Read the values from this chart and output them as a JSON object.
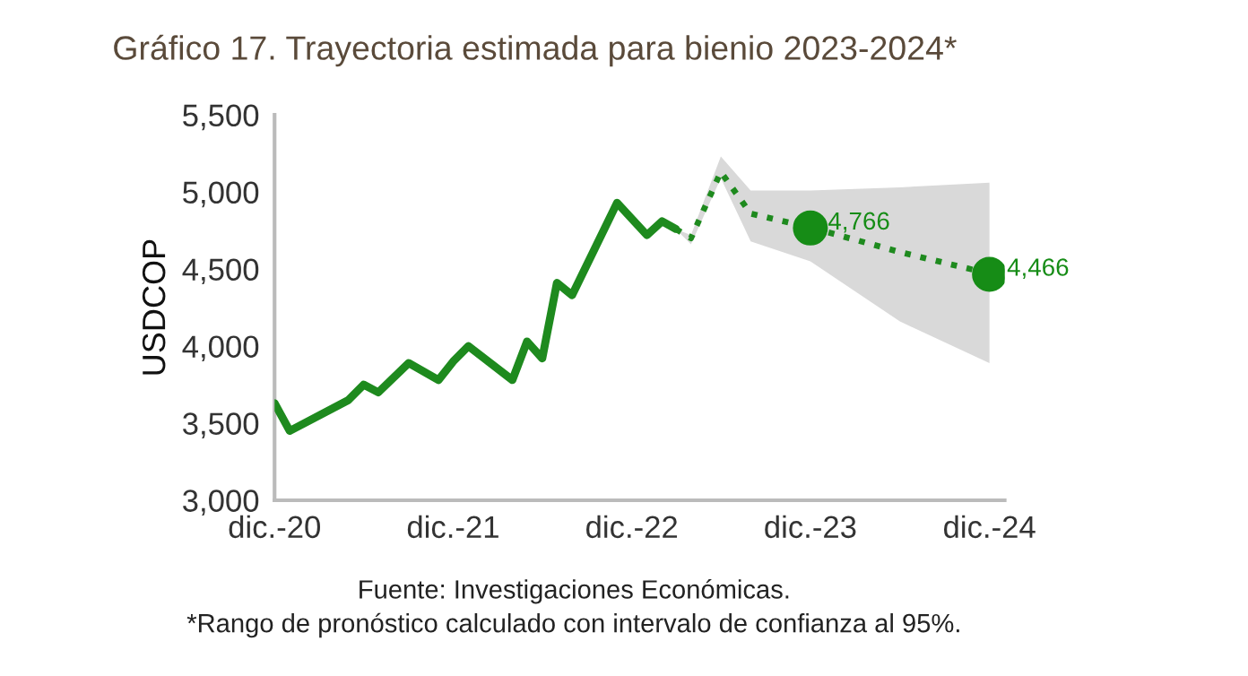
{
  "chart_data": {
    "type": "line",
    "title": "Gráfico 17. Trayectoria estimada para bienio 2023-2024*",
    "ylabel": "USDCOP",
    "annotations": [
      "Fuente: Investigaciones Económicas.",
      "*Rango de pronóstico calculado con intervalo de confianza al 95%."
    ],
    "series": [
      {
        "color": "#1e8a1e",
        "line_style": "solid",
        "x": [
          "2020-12",
          "2021-01",
          "2021-05",
          "2021-06",
          "2021-07",
          "2021-09",
          "2021-11",
          "2021-12",
          "2022-01",
          "2022-04",
          "2022-05",
          "2022-06",
          "2022-07",
          "2022-08",
          "2022-11",
          "2023-01",
          "2023-02",
          "2023-03"
        ],
        "values": [
          3630,
          3450,
          3650,
          3750,
          3700,
          3890,
          3780,
          3900,
          4000,
          3780,
          4030,
          3920,
          4410,
          4330,
          4930,
          4720,
          4810,
          4760
        ]
      },
      {
        "color": "#1e8a1e",
        "line_style": "dotted",
        "x": [
          "2023-03",
          "2023-04",
          "2023-06",
          "2023-08",
          "2023-12",
          "2024-06",
          "2024-12"
        ],
        "values": [
          4760,
          4700,
          5130,
          4860,
          4770,
          4610,
          4470
        ],
        "lower": [
          4760,
          4660,
          5090,
          4680,
          4550,
          4160,
          3890
        ],
        "upper": [
          4760,
          4720,
          5230,
          5010,
          5010,
          5030,
          5060
        ]
      },
      {
        "type": "scatter",
        "color": "#168c16",
        "marker": "circle",
        "x": [
          "2023-12",
          "2024-12"
        ],
        "values": [
          4766,
          4466
        ],
        "value_labels": [
          "4,766",
          "4,466"
        ]
      }
    ],
    "xlim": [
      "2020-12",
      "2025-01"
    ],
    "xticks": [
      {
        "value": "2020-12",
        "label": "dic.-20"
      },
      {
        "value": "2021-12",
        "label": "dic.-21"
      },
      {
        "value": "2022-12",
        "label": "dic.-22"
      },
      {
        "value": "2023-12",
        "label": "dic.-23"
      },
      {
        "value": "2024-12",
        "label": "dic.-24"
      }
    ],
    "ylim": [
      3000,
      5500
    ],
    "yticks": [
      {
        "value": 3000,
        "label": "3,000"
      },
      {
        "value": 3500,
        "label": "3,500"
      },
      {
        "value": 4000,
        "label": "4,000"
      },
      {
        "value": 4500,
        "label": "4,500"
      },
      {
        "value": 5000,
        "label": "5,000"
      },
      {
        "value": 5500,
        "label": "5,500"
      }
    ],
    "grid": false,
    "legend": false
  }
}
